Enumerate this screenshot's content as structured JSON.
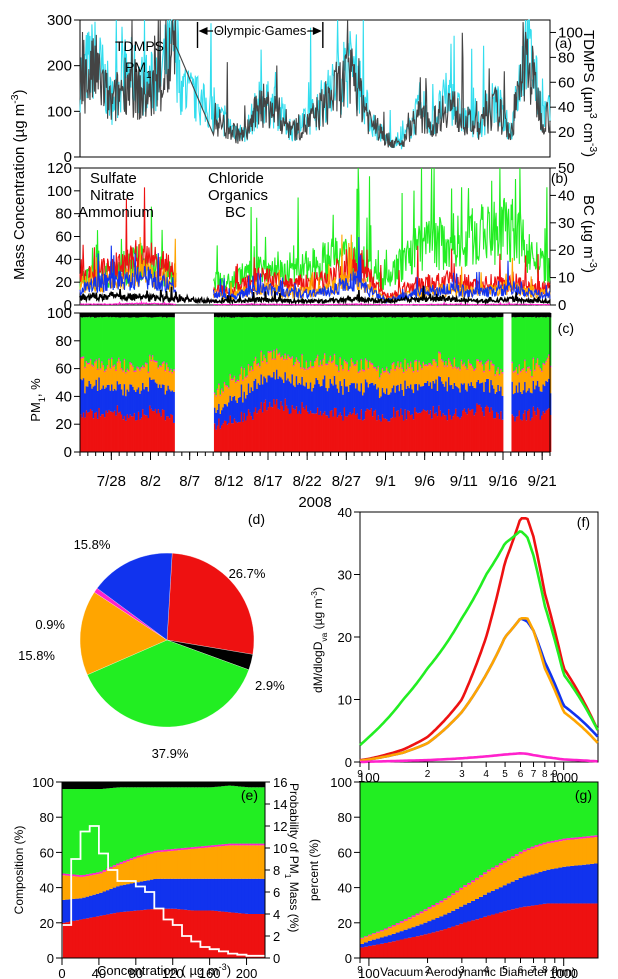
{
  "chart_data": [
    {
      "panel": "(a)",
      "type": "line",
      "ylabel_left": "Mass Concentration (µg m",
      "ylabel_left_sup": "-3",
      "ylabel_right": "TDMPS (µm",
      "ylabel_right_sup1": "3",
      "ylabel_right_mid": " cm",
      "ylabel_right_sup2": "-3",
      "ylim_left": [
        0,
        300
      ],
      "ylim_right": [
        0,
        110
      ],
      "yticks_left": [
        "0",
        "100",
        "200",
        "300"
      ],
      "yticks_right": [
        "20",
        "40",
        "60",
        "80",
        "100"
      ],
      "annotation": "Olympic Games",
      "annotation_range": [
        "8/8",
        "8/24"
      ],
      "series": [
        {
          "name": "TDMPS",
          "color": "#33ddee",
          "axis": "right",
          "x": [
            "7/24",
            "7/26",
            "7/28",
            "7/30",
            "8/1",
            "8/3",
            "8/5",
            "8/6",
            "8/12",
            "8/14",
            "8/16",
            "8/18",
            "8/20",
            "8/22",
            "8/24",
            "8/26",
            "8/28",
            "8/30",
            "9/1",
            "9/3",
            "9/5",
            "9/7",
            "9/9",
            "9/11",
            "9/13",
            "9/15",
            "9/17",
            "9/19",
            "9/21"
          ],
          "values": [
            65,
            80,
            45,
            70,
            58,
            60,
            95,
            55,
            25,
            18,
            45,
            40,
            22,
            28,
            45,
            60,
            75,
            30,
            15,
            10,
            35,
            28,
            50,
            30,
            25,
            45,
            20,
            95,
            35
          ]
        },
        {
          "name": "PM",
          "name_sub": "1",
          "color": "#444444",
          "axis": "left",
          "x": [
            "7/24",
            "7/26",
            "7/28",
            "7/30",
            "8/1",
            "8/3",
            "8/5",
            "8/6",
            "8/12",
            "8/14",
            "8/16",
            "8/18",
            "8/20",
            "8/22",
            "8/24",
            "8/26",
            "8/28",
            "8/30",
            "9/1",
            "9/3",
            "9/5",
            "9/7",
            "9/9",
            "9/11",
            "9/13",
            "9/15",
            "9/17",
            "9/19",
            "9/21"
          ],
          "values": [
            150,
            190,
            110,
            170,
            130,
            150,
            230,
            140,
            60,
            45,
            115,
            100,
            60,
            70,
            110,
            150,
            180,
            80,
            40,
            25,
            90,
            70,
            120,
            80,
            65,
            110,
            50,
            220,
            90
          ]
        }
      ]
    },
    {
      "panel": "(b)",
      "type": "line",
      "ylim_left": [
        0,
        120
      ],
      "ylim_right": [
        0,
        50
      ],
      "yticks_left": [
        "0",
        "20",
        "40",
        "60",
        "80",
        "100",
        "120"
      ],
      "yticks_right": [
        "0",
        "10",
        "20",
        "30",
        "40",
        "50"
      ],
      "ylabel_right": "BC (µg m",
      "ylabel_right_sup": "-3",
      "series": [
        {
          "name": "Sulfate",
          "color": "#ee1111",
          "x": [
            "7/24",
            "7/28",
            "8/1",
            "8/5",
            "8/12",
            "8/16",
            "8/20",
            "8/24",
            "8/28",
            "9/1",
            "9/5",
            "9/9",
            "9/13",
            "9/17",
            "9/21"
          ],
          "values": [
            30,
            45,
            60,
            40,
            15,
            35,
            25,
            30,
            55,
            10,
            25,
            30,
            25,
            30,
            20
          ]
        },
        {
          "name": "Nitrate",
          "color": "#1133ee",
          "x": [
            "7/24",
            "7/28",
            "8/1",
            "8/5",
            "8/12",
            "8/16",
            "8/20",
            "8/24",
            "8/28",
            "9/1",
            "9/5",
            "9/9",
            "9/13",
            "9/17",
            "9/21"
          ],
          "values": [
            20,
            30,
            35,
            25,
            10,
            20,
            15,
            15,
            30,
            5,
            15,
            20,
            15,
            20,
            12
          ]
        },
        {
          "name": "Ammonium",
          "color": "#ffa500",
          "x": [
            "7/24",
            "7/28",
            "8/1",
            "8/5",
            "8/12",
            "8/16",
            "8/20",
            "8/24",
            "8/28",
            "9/1",
            "9/5",
            "9/9",
            "9/13",
            "9/17",
            "9/21"
          ],
          "values": [
            25,
            30,
            40,
            28,
            10,
            22,
            15,
            18,
            35,
            6,
            15,
            20,
            15,
            22,
            14
          ]
        },
        {
          "name": "Chloride",
          "color": "#ff22cc",
          "x": [
            "7/24",
            "7/28",
            "8/1",
            "8/5",
            "8/12",
            "8/16",
            "8/20",
            "8/24",
            "8/28",
            "9/1",
            "9/5",
            "9/9",
            "9/13",
            "9/17",
            "9/21"
          ],
          "values": [
            1,
            1,
            2,
            1,
            0.5,
            1,
            0.5,
            0.5,
            1,
            0.3,
            0.5,
            1,
            0.5,
            1,
            0.5
          ]
        },
        {
          "name": "Organics",
          "color": "#22ee22",
          "x": [
            "7/24",
            "7/28",
            "8/1",
            "8/5",
            "8/12",
            "8/16",
            "8/20",
            "8/24",
            "8/28",
            "9/1",
            "9/5",
            "9/9",
            "9/13",
            "9/17",
            "9/21"
          ],
          "values": [
            40,
            50,
            70,
            45,
            35,
            60,
            50,
            70,
            80,
            40,
            90,
            100,
            110,
            120,
            60
          ]
        },
        {
          "name": "BC",
          "color": "#000000",
          "axis": "right",
          "x": [
            "7/24",
            "7/28",
            "8/1",
            "8/5",
            "8/12",
            "8/16",
            "8/20",
            "8/24",
            "8/28",
            "9/1",
            "9/5",
            "9/9",
            "9/13",
            "9/17",
            "9/21"
          ],
          "values": [
            4,
            5,
            4,
            3,
            2,
            3,
            2,
            2,
            3,
            2,
            3,
            3,
            2,
            3,
            2
          ]
        }
      ]
    },
    {
      "panel": "(c)",
      "type": "area",
      "ylabel": "PM",
      "ylabel_sub": "1",
      "ylabel_suffix": ", %",
      "ylim": [
        0,
        100
      ],
      "yticks": [
        "0",
        "20",
        "40",
        "60",
        "80",
        "100"
      ],
      "xticks": [
        "7/28",
        "8/2",
        "8/7",
        "8/12",
        "8/17",
        "8/22",
        "8/27",
        "9/1",
        "9/6",
        "9/11",
        "9/16",
        "9/21"
      ],
      "xlabel": "2008",
      "gaps": [
        [
          "8/5",
          "8/10"
        ],
        [
          "9/16",
          "9/17"
        ]
      ],
      "stack_order": [
        "Sulfate",
        "Nitrate",
        "Ammonium",
        "Chloride",
        "Organics",
        "BC"
      ],
      "series_percent": {
        "Sulfate": [
          28,
          27,
          28,
          26,
          30,
          25,
          20,
          18,
          22,
          28,
          35,
          32,
          30,
          30,
          28,
          28,
          26,
          27,
          28,
          30,
          28,
          30,
          27,
          26,
          28,
          30
        ],
        "Nitrate": [
          22,
          20,
          18,
          20,
          20,
          18,
          12,
          10,
          15,
          18,
          20,
          20,
          18,
          22,
          18,
          20,
          18,
          20,
          18,
          22,
          20,
          18,
          18,
          20,
          18,
          18
        ],
        "Ammonium": [
          15,
          15,
          16,
          15,
          15,
          14,
          13,
          12,
          13,
          14,
          15,
          15,
          14,
          16,
          15,
          15,
          14,
          15,
          14,
          15,
          15,
          14,
          14,
          15,
          14,
          15
        ],
        "Chloride": [
          1,
          1,
          1,
          1,
          1,
          1,
          1,
          1,
          1,
          1,
          1,
          1,
          1,
          1,
          1,
          1,
          1,
          1,
          1,
          1,
          1,
          1,
          1,
          1,
          1,
          1
        ],
        "Organics": [
          31,
          34,
          34,
          35,
          31,
          39,
          51,
          56,
          46,
          36,
          26,
          29,
          34,
          28,
          35,
          33,
          38,
          34,
          36,
          29,
          33,
          34,
          37,
          35,
          36,
          33
        ],
        "BC": [
          3,
          3,
          3,
          3,
          3,
          3,
          3,
          3,
          3,
          3,
          3,
          3,
          3,
          3,
          3,
          3,
          3,
          3,
          3,
          3,
          3,
          3,
          3,
          3,
          3,
          3
        ]
      }
    },
    {
      "panel": "(d)",
      "type": "pie",
      "slices": [
        {
          "name": "Sulfate",
          "value": 26.7,
          "label": "26.7%",
          "color": "#ee1111"
        },
        {
          "name": "BC",
          "value": 2.9,
          "label": "2.9%",
          "color": "#000000"
        },
        {
          "name": "Organics",
          "value": 37.9,
          "label": "37.9%",
          "color": "#22ee22"
        },
        {
          "name": "Ammonium",
          "value": 15.8,
          "label": "15.8%",
          "color": "#ffa500"
        },
        {
          "name": "Chloride",
          "value": 0.9,
          "label": "0.9%",
          "color": "#ff22cc"
        },
        {
          "name": "Nitrate",
          "value": 15.8,
          "label": "15.8%",
          "color": "#1133ee"
        }
      ]
    },
    {
      "panel": "(f)",
      "type": "line",
      "ylabel": "dM/dlogD",
      "ylabel_sub": "va",
      "ylabel_unit": " (µg m",
      "ylabel_unit_sup": "-3",
      "xscale": "log",
      "xlim": [
        90,
        1500
      ],
      "ylim": [
        0,
        40
      ],
      "yticks": [
        "0",
        "10",
        "20",
        "30",
        "40"
      ],
      "xtick_labels": [
        "9",
        "100",
        "2",
        "3",
        "4",
        "5",
        "6",
        "7",
        "8",
        "9",
        "1000"
      ],
      "x": [
        90,
        100,
        150,
        200,
        300,
        400,
        500,
        600,
        650,
        700,
        800,
        1000,
        1500
      ],
      "series": [
        {
          "name": "Sulfate",
          "color": "#ee1111",
          "values": [
            0.3,
            0.5,
            2,
            4,
            10,
            20,
            32,
            39,
            39,
            36,
            27,
            15,
            5
          ]
        },
        {
          "name": "Organics",
          "color": "#22ee22",
          "values": [
            2.7,
            4,
            10,
            15,
            23,
            30,
            35,
            37,
            36,
            33,
            25,
            14,
            5
          ]
        },
        {
          "name": "Nitrate",
          "color": "#1133ee",
          "values": [
            0.2,
            0.4,
            1.5,
            3,
            8,
            14,
            20,
            23,
            22.5,
            21,
            16,
            9,
            4
          ]
        },
        {
          "name": "Ammonium",
          "color": "#ffa500",
          "values": [
            0.2,
            0.4,
            1.5,
            3,
            8,
            14,
            20,
            23,
            23,
            21,
            15,
            8,
            3
          ]
        },
        {
          "name": "Chloride",
          "color": "#ff22cc",
          "values": [
            0,
            0.05,
            0.2,
            0.3,
            0.6,
            0.9,
            1.2,
            1.4,
            1.3,
            1.1,
            0.8,
            0.4,
            0.1
          ]
        }
      ]
    },
    {
      "panel": "(e)",
      "type": "area",
      "ylabel": "Composition (%)",
      "ylabel_right": "Probability of PM",
      "ylabel_right_sub": "1",
      "ylabel_right_suffix": " Mass (%)",
      "xlabel": "Concentration ( µg m",
      "xlabel_sup": "-3",
      "xlabel_suffix": ")",
      "xlim": [
        0,
        220
      ],
      "ylim": [
        0,
        100
      ],
      "ylim_right": [
        0,
        16
      ],
      "yticks": [
        "0",
        "20",
        "40",
        "60",
        "80",
        "100"
      ],
      "yticks_right": [
        "0",
        "2",
        "4",
        "6",
        "8",
        "10",
        "12",
        "14",
        "16"
      ],
      "xticks": [
        "0",
        "40",
        "80",
        "120",
        "160",
        "200"
      ],
      "x": [
        0,
        20,
        40,
        60,
        80,
        100,
        120,
        140,
        160,
        180,
        200,
        220
      ],
      "stack_order": [
        "Sulfate",
        "Nitrate",
        "Ammonium",
        "Chloride",
        "Organics",
        "BC"
      ],
      "series_percent": {
        "Sulfate": [
          20,
          22,
          24,
          26,
          27,
          28,
          28,
          27,
          27,
          26,
          25,
          25
        ],
        "Nitrate": [
          13,
          12,
          13,
          15,
          16,
          17,
          17,
          18,
          18,
          19,
          20,
          20
        ],
        "Ammonium": [
          14,
          12,
          11,
          12,
          14,
          15,
          16,
          17,
          18,
          19,
          19,
          19
        ],
        "Chloride": [
          1,
          1,
          1,
          1,
          1,
          1,
          1,
          1,
          1,
          1,
          1,
          1
        ],
        "Organics": [
          48,
          49,
          47,
          43,
          39,
          36,
          35,
          34,
          33,
          33,
          32,
          32
        ],
        "BC": [
          4,
          4,
          4,
          3,
          3,
          3,
          3,
          3,
          3,
          2,
          3,
          3
        ]
      },
      "probability_histogram": {
        "bin_start": [
          0,
          10,
          20,
          30,
          40,
          50,
          60,
          70,
          80,
          90,
          100,
          110,
          120,
          130,
          140,
          150,
          160,
          170,
          180,
          190,
          200,
          210
        ],
        "values": [
          3,
          9,
          11.5,
          12,
          9.5,
          8,
          7,
          7,
          6.5,
          6,
          4.5,
          3.5,
          3,
          2,
          1.5,
          1,
          0.8,
          0.6,
          0.4,
          0.3,
          0.2,
          0.2
        ]
      }
    },
    {
      "panel": "(g)",
      "type": "area",
      "ylabel": "percent (%)",
      "xlabel": "Vacuum Aerodynamic Diameter (nm)",
      "xscale": "log",
      "xlim": [
        90,
        1500
      ],
      "ylim": [
        0,
        100
      ],
      "yticks": [
        "0",
        "20",
        "40",
        "60",
        "80",
        "100"
      ],
      "xtick_labels": [
        "9",
        "100",
        "2",
        "3",
        "4",
        "5",
        "6",
        "7",
        "8",
        "9",
        "1000"
      ],
      "x": [
        90,
        100,
        150,
        200,
        300,
        400,
        500,
        600,
        700,
        800,
        1000,
        1500
      ],
      "stack_order": [
        "Sulfate",
        "Nitrate",
        "Ammonium",
        "Chloride",
        "Organics",
        "BC"
      ],
      "series_percent": {
        "Sulfate": [
          6,
          7,
          11,
          14,
          20,
          24,
          27,
          29,
          30,
          31,
          31,
          31
        ],
        "Nitrate": [
          2,
          3,
          5,
          7,
          10,
          13,
          15,
          17,
          18,
          19,
          21,
          23
        ],
        "Ammonium": [
          3,
          3,
          5,
          7,
          10,
          12,
          13,
          14,
          15,
          15,
          15,
          15
        ],
        "Chloride": [
          0.5,
          0.5,
          1,
          1,
          1,
          1,
          1,
          1,
          1,
          1,
          1,
          1
        ],
        "Organics": [
          88.5,
          86.5,
          78,
          71,
          59,
          50,
          44,
          39,
          36,
          34,
          32,
          30
        ],
        "BC": [
          0,
          0,
          0,
          0,
          0,
          0,
          0,
          0,
          0,
          0,
          0,
          0
        ]
      }
    }
  ]
}
